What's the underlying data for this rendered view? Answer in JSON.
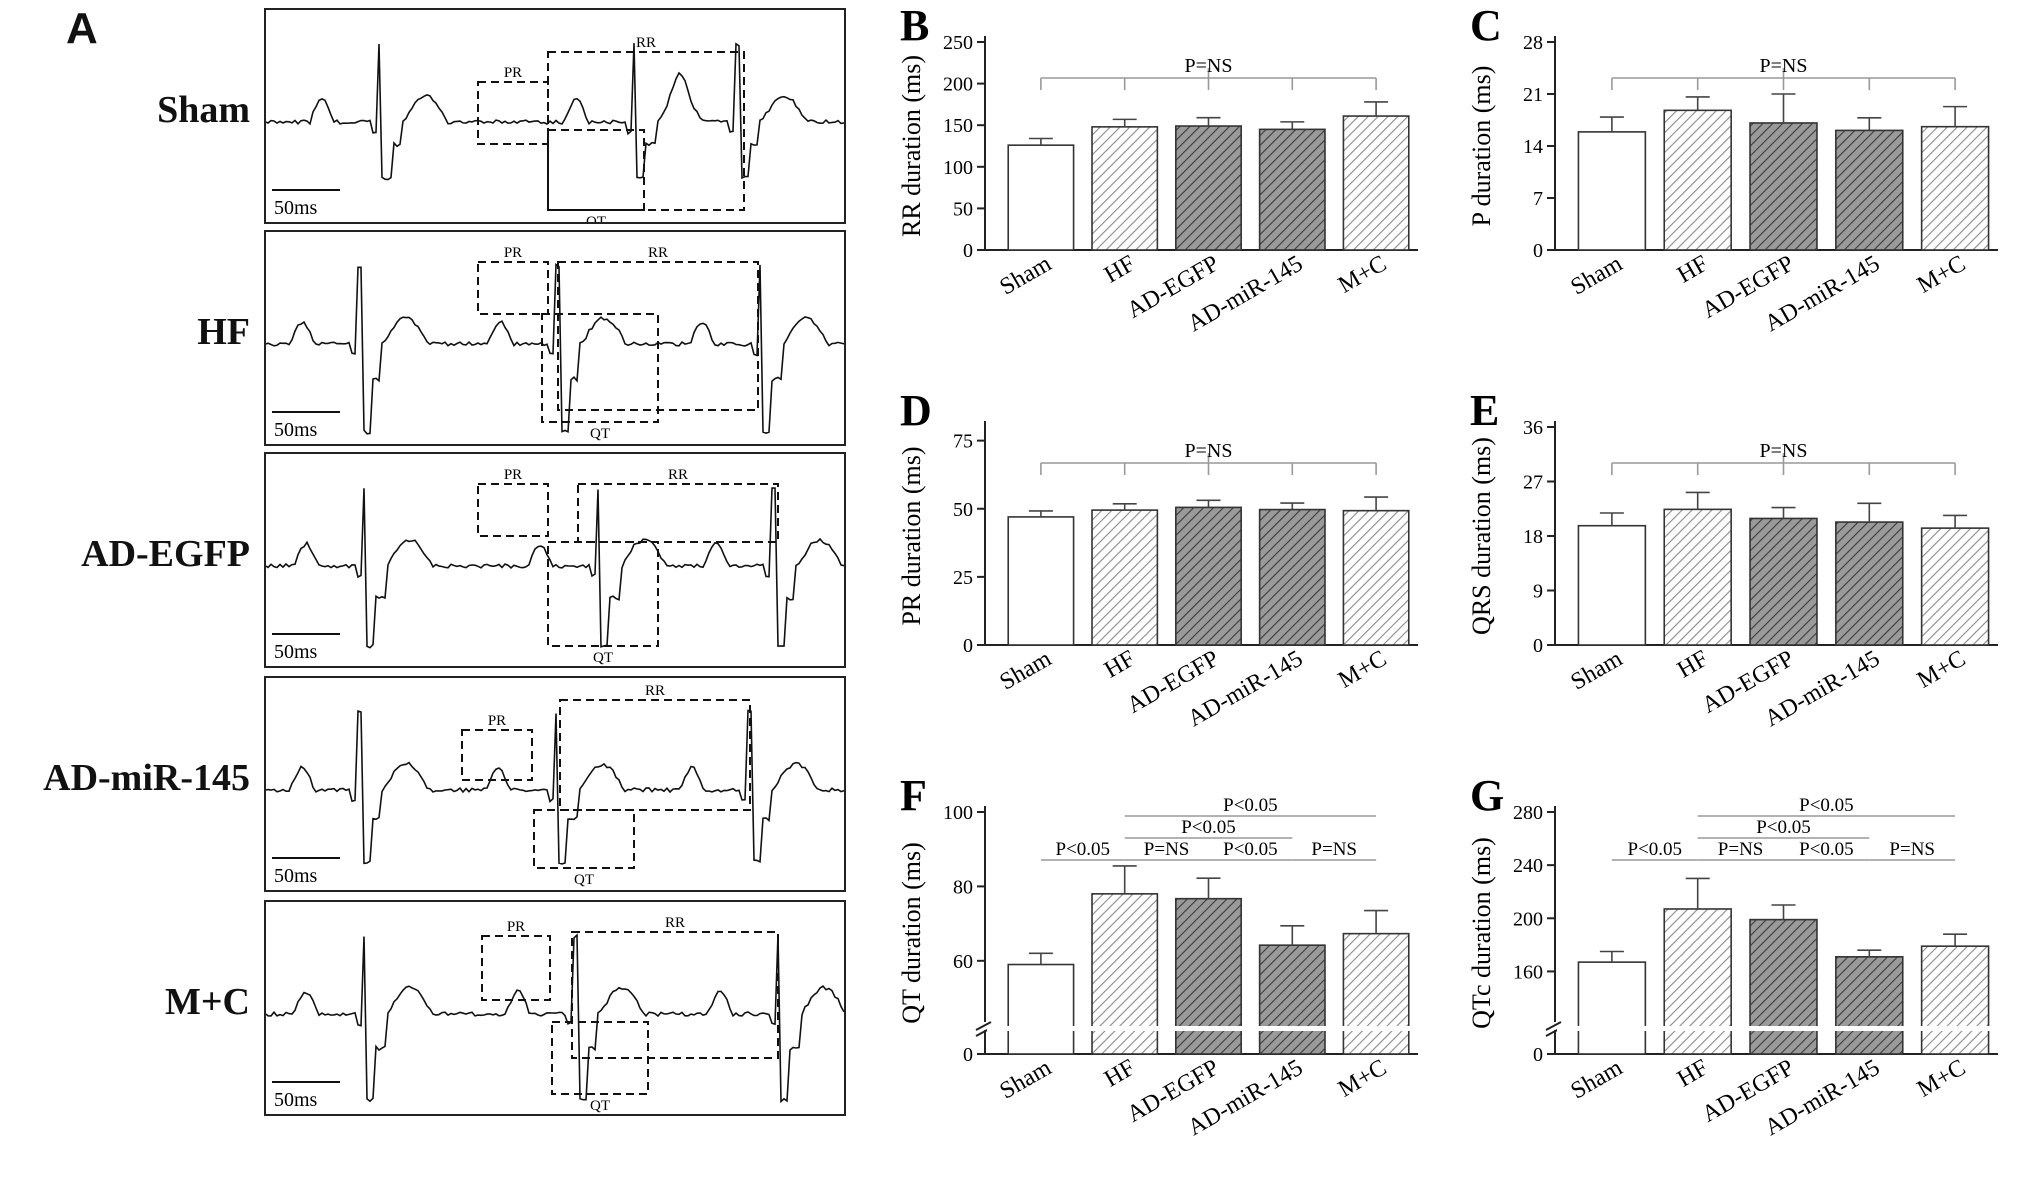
{
  "panel_a": {
    "letter": "A",
    "scale_label": "50ms",
    "interval_labels": {
      "pr": "PR",
      "rr": "RR",
      "qt": "QT"
    },
    "traces": [
      {
        "label": "Sham"
      },
      {
        "label": "HF"
      },
      {
        "label": "AD-EGFP"
      },
      {
        "label": "AD-miR-145"
      },
      {
        "label": "M+C"
      }
    ]
  },
  "colors": {
    "sham": "#ffffff",
    "light_hatch": "#cfcfcf",
    "dark_hatch": "#7a7a7a",
    "bracket": "#9a9a9a"
  },
  "chart_data": [
    {
      "id": "B",
      "type": "bar",
      "letter": "B",
      "title": "",
      "xlabel": "",
      "ylabel": "RR duration (ms)",
      "categories": [
        "Sham",
        "HF",
        "AD-EGFP",
        "AD-miR-145",
        "M+C"
      ],
      "values": [
        126,
        148,
        149,
        145,
        161
      ],
      "errors": [
        8,
        9,
        10,
        9,
        17
      ],
      "ylim": [
        0,
        250
      ],
      "yticks": [
        0,
        50,
        100,
        150,
        200,
        250
      ],
      "annotations": [
        {
          "text": "P=NS",
          "from": 0,
          "to": 4,
          "level": 0
        }
      ]
    },
    {
      "id": "C",
      "type": "bar",
      "letter": "C",
      "title": "",
      "xlabel": "",
      "ylabel": "P duration (ms)",
      "categories": [
        "Sham",
        "HF",
        "AD-EGFP",
        "AD-miR-145",
        "M+C"
      ],
      "values": [
        15.9,
        18.8,
        17.1,
        16.1,
        16.6
      ],
      "errors": [
        2.0,
        1.8,
        3.9,
        1.7,
        2.7
      ],
      "ylim": [
        0,
        28
      ],
      "yticks": [
        0,
        7,
        14,
        21,
        28
      ],
      "annotations": [
        {
          "text": "P=NS",
          "from": 0,
          "to": 4,
          "level": 0
        }
      ]
    },
    {
      "id": "D",
      "type": "bar",
      "letter": "D",
      "title": "",
      "xlabel": "",
      "ylabel": "PR duration (ms)",
      "categories": [
        "Sham",
        "HF",
        "AD-EGFP",
        "AD-miR-145",
        "M+C"
      ],
      "values": [
        47,
        49.5,
        50.5,
        49.7,
        49.3
      ],
      "errors": [
        2.2,
        2.3,
        2.6,
        2.4,
        5.0
      ],
      "ylim": [
        0,
        80
      ],
      "yticks": [
        0,
        25,
        50,
        75
      ],
      "annotations": [
        {
          "text": "P=NS",
          "from": 0,
          "to": 4,
          "level": 0
        }
      ]
    },
    {
      "id": "E",
      "type": "bar",
      "letter": "E",
      "title": "",
      "xlabel": "",
      "ylabel": "QRS duration (ms)",
      "categories": [
        "Sham",
        "HF",
        "AD-EGFP",
        "AD-miR-145",
        "M+C"
      ],
      "values": [
        19.7,
        22.4,
        20.9,
        20.3,
        19.3
      ],
      "errors": [
        2.1,
        2.8,
        1.8,
        3.1,
        2.1
      ],
      "ylim": [
        0,
        36
      ],
      "yticks": [
        0,
        9,
        18,
        27,
        36
      ],
      "annotations": [
        {
          "text": "P=NS",
          "from": 0,
          "to": 4,
          "level": 0
        }
      ]
    },
    {
      "id": "F",
      "type": "bar",
      "letter": "F",
      "title": "",
      "xlabel": "",
      "ylabel": "QT duration (ms)",
      "categories": [
        "Sham",
        "HF",
        "AD-EGFP",
        "AD-miR-145",
        "M+C"
      ],
      "values": [
        59,
        78,
        76.7,
        64.2,
        67.3
      ],
      "errors": [
        3,
        7.5,
        5.5,
        5.2,
        6.2
      ],
      "axis_break": true,
      "ylim": [
        50,
        100
      ],
      "yticks": [
        0,
        60,
        80,
        100
      ],
      "annotations": [
        {
          "text": "P<0.05",
          "from": 0,
          "to": 1,
          "level": 0
        },
        {
          "text": "P=NS",
          "from": 1,
          "to": 2,
          "level": 0
        },
        {
          "text": "P<0.05",
          "from": 2,
          "to": 3,
          "level": 0
        },
        {
          "text": "P=NS",
          "from": 3,
          "to": 4,
          "level": 0
        },
        {
          "text": "P<0.05",
          "from": 1,
          "to": 3,
          "level": 1
        },
        {
          "text": "P<0.05",
          "from": 1,
          "to": 4,
          "level": 2
        }
      ]
    },
    {
      "id": "G",
      "type": "bar",
      "letter": "G",
      "title": "",
      "xlabel": "",
      "ylabel": "QTc duration (ms)",
      "categories": [
        "Sham",
        "HF",
        "AD-EGFP",
        "AD-miR-145",
        "M+C"
      ],
      "values": [
        167,
        207,
        199,
        171,
        179
      ],
      "errors": [
        8,
        23,
        11,
        5,
        9
      ],
      "axis_break": true,
      "ylim": [
        140,
        280
      ],
      "yticks": [
        0,
        160,
        200,
        240,
        280
      ],
      "annotations": [
        {
          "text": "P<0.05",
          "from": 0,
          "to": 1,
          "level": 0
        },
        {
          "text": "P=NS",
          "from": 1,
          "to": 2,
          "level": 0
        },
        {
          "text": "P<0.05",
          "from": 2,
          "to": 3,
          "level": 0
        },
        {
          "text": "P=NS",
          "from": 3,
          "to": 4,
          "level": 0
        },
        {
          "text": "P<0.05",
          "from": 1,
          "to": 3,
          "level": 1
        },
        {
          "text": "P<0.05",
          "from": 1,
          "to": 4,
          "level": 2
        }
      ]
    }
  ]
}
